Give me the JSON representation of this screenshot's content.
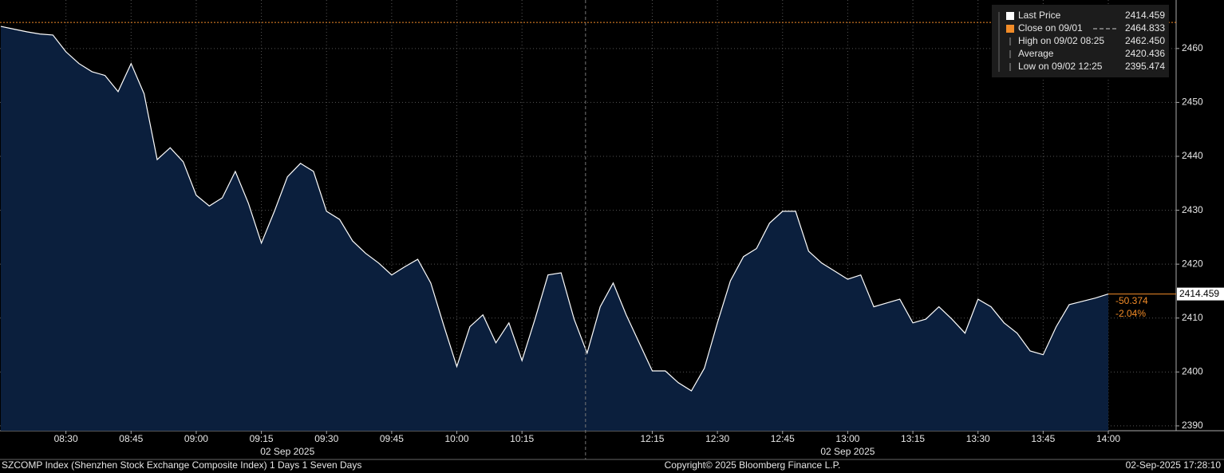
{
  "chart_data": {
    "type": "area",
    "x": [
      "08:15",
      "08:18",
      "08:21",
      "08:24",
      "08:27",
      "08:30",
      "08:33",
      "08:36",
      "08:39",
      "08:42",
      "08:45",
      "08:48",
      "08:51",
      "08:54",
      "08:57",
      "09:00",
      "09:03",
      "09:06",
      "09:09",
      "09:12",
      "09:15",
      "09:18",
      "09:21",
      "09:24",
      "09:27",
      "09:30",
      "09:33",
      "09:36",
      "09:39",
      "09:42",
      "09:45",
      "09:48",
      "09:51",
      "09:54",
      "09:57",
      "10:00",
      "10:03",
      "10:06",
      "10:09",
      "10:12",
      "10:15",
      "10:18",
      "10:21",
      "10:24",
      "10:27",
      "12:00",
      "12:03",
      "12:06",
      "12:09",
      "12:12",
      "12:15",
      "12:18",
      "12:21",
      "12:24",
      "12:27",
      "12:30",
      "12:33",
      "12:36",
      "12:39",
      "12:42",
      "12:45",
      "12:48",
      "12:51",
      "12:54",
      "12:57",
      "13:00",
      "13:03",
      "13:06",
      "13:09",
      "13:12",
      "13:15",
      "13:18",
      "13:21",
      "13:24",
      "13:27",
      "13:30",
      "13:33",
      "13:36",
      "13:39",
      "13:42",
      "13:45",
      "13:48",
      "13:51",
      "13:54",
      "13:57",
      "14:00"
    ],
    "series": [
      {
        "name": "Last Price",
        "color": "#ffffff",
        "fill": "#0b1f3d",
        "values": [
          2464.1,
          2463.6,
          2463.1,
          2462.7,
          2462.5,
          2459.4,
          2457.2,
          2455.7,
          2455.0,
          2452.0,
          2457.2,
          2451.6,
          2439.4,
          2441.6,
          2439.0,
          2432.8,
          2430.8,
          2432.3,
          2437.2,
          2431.3,
          2423.9,
          2429.8,
          2436.2,
          2438.7,
          2437.2,
          2429.8,
          2428.3,
          2424.3,
          2422.0,
          2420.2,
          2418.0,
          2419.5,
          2420.9,
          2416.5,
          2408.6,
          2401.0,
          2408.4,
          2410.6,
          2405.4,
          2409.1,
          2402.1,
          2409.8,
          2418.0,
          2418.4,
          2409.8,
          2403.5,
          2412.1,
          2416.5,
          2410.6,
          2405.4,
          2400.2,
          2400.2,
          2398.0,
          2396.5,
          2400.7,
          2409.1,
          2416.9,
          2421.4,
          2422.9,
          2427.6,
          2429.8,
          2429.8,
          2422.4,
          2420.2,
          2418.7,
          2417.2,
          2418.0,
          2412.1,
          2412.8,
          2413.5,
          2409.1,
          2409.8,
          2412.1,
          2409.8,
          2407.2,
          2413.5,
          2412.1,
          2409.1,
          2407.2,
          2403.9,
          2403.2,
          2408.4,
          2412.5,
          2413.1,
          2413.7,
          2414.459
        ]
      }
    ],
    "close_line": {
      "value": 2464.833,
      "color": "#f28c28"
    },
    "legend": [
      {
        "label": "Last Price",
        "value": 2414.459
      },
      {
        "label": "Close on 09/01",
        "value": 2464.833
      },
      {
        "label": "High on 09/02 08:25",
        "value": {
          "value": 2462.45,
          "label": "2462.450"
        }
      },
      {
        "label": "Average",
        "value": 2420.436
      },
      {
        "label": "Low on 09/02 12:25",
        "value": 2395.474
      }
    ],
    "change": -50.374,
    "change_pct": {
      "value": -2.04,
      "label": "-2.04%"
    },
    "ylim": [
      2389.1,
      2469.0
    ],
    "yticks": [
      2390,
      2400,
      2410,
      2420,
      2430,
      2440,
      2450,
      2460
    ],
    "xticks": [
      "08:30",
      "08:45",
      "09:00",
      "09:15",
      "09:30",
      "09:45",
      "10:00",
      "10:15",
      "12:15",
      "12:30",
      "12:45",
      "13:00",
      "13:15",
      "13:30",
      "13:45",
      "14:00"
    ],
    "date_labels": [
      "02 Sep 2025",
      "02 Sep 2025"
    ],
    "grid": true,
    "footer": {
      "left": "SZCOMP Index (Shenzhen Stock Exchange Composite Index) 1 Days 1 Seven Days",
      "center": "Copyright© 2025 Bloomberg Finance L.P.",
      "right": "02-Sep-2025 17:28:10"
    }
  }
}
